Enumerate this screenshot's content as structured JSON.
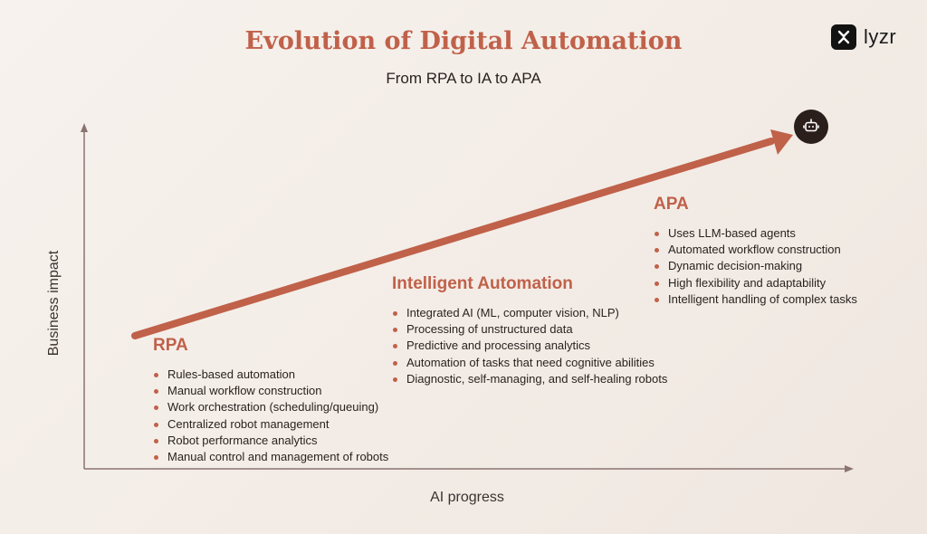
{
  "title": "Evolution of Digital Automation",
  "subtitle": "From RPA to IA to APA",
  "logo": {
    "text": "lyzr",
    "mark_icon": "lyzr-logo-icon"
  },
  "axes": {
    "x_label": "AI progress",
    "y_label": "Business impact"
  },
  "trend_arrow": {
    "end_icon": "robot-icon",
    "color": "#c0614a"
  },
  "colors": {
    "accent": "#c0614a",
    "axis": "#8a7470",
    "text": "#2a2220",
    "badge": "#2b1f1c"
  },
  "stages": {
    "rpa": {
      "title": "RPA",
      "items": [
        "Rules-based automation",
        "Manual workflow construction",
        "Work orchestration (scheduling/queuing)",
        "Centralized robot management",
        "Robot performance analytics",
        "Manual control and management of robots"
      ]
    },
    "ia": {
      "title": "Intelligent Automation",
      "items": [
        "Integrated AI (ML, computer vision, NLP)",
        "Processing of unstructured data",
        "Predictive and processing analytics",
        "Automation of tasks that need cognitive abilities",
        "Diagnostic, self-managing, and self-healing robots"
      ]
    },
    "apa": {
      "title": "APA",
      "items": [
        "Uses LLM-based agents",
        "Automated workflow construction",
        "Dynamic decision-making",
        "High flexibility and adaptability",
        "Intelligent handling of complex tasks"
      ]
    }
  }
}
